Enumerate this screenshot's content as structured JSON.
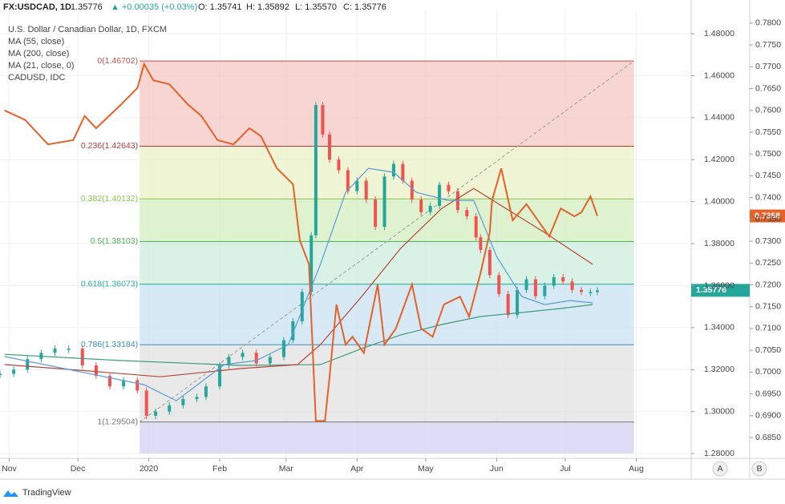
{
  "header": {
    "symbol": "FX:USDCAD, 1D",
    "last": "1.35776",
    "change": "▲ +0.00035 (+0.03%)",
    "open": "O: 1.35741",
    "high": "H: 1.35892",
    "low": "L: 1.35570",
    "close": "C: 1.35776"
  },
  "ui": {
    "auto": "A",
    "log": "B",
    "brand": "TradingView"
  },
  "chart_data": {
    "type": "line",
    "xlim": [
      0,
      302
    ],
    "xticks": [
      {
        "value": 4,
        "label": "Nov"
      },
      {
        "value": 34,
        "label": "Dec"
      },
      {
        "value": 65,
        "label": "2020"
      },
      {
        "value": 96,
        "label": "Feb"
      },
      {
        "value": 125,
        "label": "Mar"
      },
      {
        "value": 156,
        "label": "Apr"
      },
      {
        "value": 186,
        "label": "May"
      },
      {
        "value": 217,
        "label": "Jun"
      },
      {
        "value": 247,
        "label": "Jul"
      },
      {
        "value": 278,
        "label": "Aug"
      }
    ],
    "ylim": [
      1.2785,
      1.4915
    ],
    "yticks": [
      {
        "value": 1.28,
        "label": "1.28000"
      },
      {
        "value": 1.3,
        "label": "1.30000"
      },
      {
        "value": 1.32,
        "label": "1.32000"
      },
      {
        "value": 1.34,
        "label": "1.34000"
      },
      {
        "value": 1.36,
        "label": "1.36000"
      },
      {
        "value": 1.38,
        "label": "1.38000"
      },
      {
        "value": 1.4,
        "label": "1.40000"
      },
      {
        "value": 1.42,
        "label": "1.42000"
      },
      {
        "value": 1.44,
        "label": "1.44000"
      },
      {
        "value": 1.46,
        "label": "1.46000"
      },
      {
        "value": 1.48,
        "label": "1.48000"
      }
    ],
    "y2lim": [
      0.6806,
      0.7831
    ],
    "y2ticks": [
      {
        "value": 0.685,
        "label": "0.6850"
      },
      {
        "value": 0.69,
        "label": "0.6900"
      },
      {
        "value": 0.695,
        "label": "0.6950"
      },
      {
        "value": 0.7,
        "label": "0.7000"
      },
      {
        "value": 0.705,
        "label": "0.7050"
      },
      {
        "value": 0.71,
        "label": "0.7100"
      },
      {
        "value": 0.715,
        "label": "0.7150"
      },
      {
        "value": 0.72,
        "label": "0.7200"
      },
      {
        "value": 0.725,
        "label": "0.7250"
      },
      {
        "value": 0.73,
        "label": "0.7300"
      },
      {
        "value": 0.735,
        "label": "0.7350"
      },
      {
        "value": 0.74,
        "label": "0.7400"
      },
      {
        "value": 0.745,
        "label": "0.7450"
      },
      {
        "value": 0.75,
        "label": "0.7500"
      },
      {
        "value": 0.755,
        "label": "0.7550"
      },
      {
        "value": 0.76,
        "label": "0.7600"
      },
      {
        "value": 0.765,
        "label": "0.7650"
      },
      {
        "value": 0.77,
        "label": "0.7700"
      },
      {
        "value": 0.775,
        "label": "0.7750"
      },
      {
        "value": 0.78,
        "label": "0.7800"
      }
    ],
    "grid": true,
    "fib": {
      "start": 61,
      "end": 277,
      "levels": [
        {
          "value": 1.46702,
          "label": "0(1.46702)",
          "color": "#f4c7c3",
          "line": "#c0504d"
        },
        {
          "value": 1.42643,
          "label": "0.236(1.42643)",
          "color": "#e9f2c6",
          "line": "#b03a3a"
        },
        {
          "value": 1.40132,
          "label": "0.382(1.40132)",
          "color": "#d3edc0",
          "line": "#8bc34a"
        },
        {
          "value": 1.38103,
          "label": "0.5(1.38103)",
          "color": "#cdeedc",
          "line": "#4caf50"
        },
        {
          "value": 1.36073,
          "label": "0.618(1.36073)",
          "color": "#cae2f0",
          "line": "#26a69a"
        },
        {
          "value": 1.33184,
          "label": "0.786(1.33184)",
          "color": "#e2e2e2",
          "line": "#3a8fbf"
        },
        {
          "value": 1.29504,
          "label": "1(1.29504)",
          "color": "#d1d1f3",
          "line": "#777777"
        }
      ]
    },
    "series": [
      {
        "name": "U.S. Dollar / Canadian Dollar, 1D, FXCM",
        "style": "candle",
        "up_color": "#26a69a",
        "down_color": "#ef5350",
        "badge_color": "#26a69a",
        "x": [
          0,
          6,
          12,
          18,
          24,
          30,
          36,
          42,
          48,
          54,
          60,
          64,
          68,
          74,
          80,
          86,
          90,
          96,
          100,
          106,
          112,
          118,
          124,
          128,
          132,
          136,
          138,
          141,
          144,
          148,
          152,
          156,
          160,
          164,
          168,
          172,
          176,
          180,
          184,
          188,
          192,
          196,
          200,
          204,
          208,
          210,
          214,
          218,
          222,
          226,
          230,
          234,
          238,
          242,
          246,
          250,
          254,
          258,
          261
        ],
        "values": [
          1.318,
          1.32,
          1.325,
          1.328,
          1.33,
          1.33,
          1.322,
          1.317,
          1.312,
          1.315,
          1.31,
          1.298,
          1.3,
          1.303,
          1.306,
          1.307,
          1.312,
          1.322,
          1.326,
          1.328,
          1.323,
          1.326,
          1.334,
          1.343,
          1.357,
          1.384,
          1.446,
          1.432,
          1.42,
          1.415,
          1.405,
          1.41,
          1.401,
          1.388,
          1.412,
          1.418,
          1.41,
          1.401,
          1.395,
          1.398,
          1.408,
          1.405,
          1.396,
          1.393,
          1.383,
          1.377,
          1.365,
          1.356,
          1.346,
          1.358,
          1.363,
          1.355,
          1.36,
          1.364,
          1.362,
          1.358,
          1.357,
          1.357,
          1.35776
        ]
      },
      {
        "name": "MA (55, close)",
        "color": "#3d9a7c",
        "x": [
          2,
          53,
          105,
          140,
          158,
          175,
          193,
          210,
          228,
          245,
          259
        ],
        "values": [
          1.3273,
          1.3243,
          1.322,
          1.3224,
          1.33,
          1.3365,
          1.3415,
          1.3453,
          1.3472,
          1.3491,
          1.351
        ]
      },
      {
        "name": "MA (200, close)",
        "color": "#b5453a",
        "x": [
          2,
          35,
          70,
          105,
          130,
          140,
          158,
          175,
          193,
          207,
          221,
          238,
          259
        ],
        "values": [
          1.3224,
          1.3197,
          1.3166,
          1.3205,
          1.3224,
          1.3319,
          1.3548,
          1.3777,
          1.3968,
          1.4063,
          1.3968,
          1.3853,
          1.3701
        ]
      },
      {
        "name": "MA (21, close, 0)",
        "color": "#5b9cd6",
        "x": [
          2,
          63,
          77,
          98,
          112,
          126,
          140,
          151,
          161,
          172,
          182,
          196,
          207,
          217,
          228,
          238,
          249,
          259
        ],
        "values": [
          1.3262,
          1.3128,
          1.3052,
          1.3224,
          1.3243,
          1.3319,
          1.3701,
          1.4044,
          1.4159,
          1.414,
          1.4044,
          1.4006,
          1.4006,
          1.3739,
          1.3548,
          1.351,
          1.3529,
          1.3518
        ]
      },
      {
        "name": "CADUSD, IDC",
        "color": "#e2622a",
        "axis": "y2",
        "badge_color": "#e2622a",
        "x": [
          2,
          11,
          21,
          32,
          37,
          42,
          53,
          60,
          63,
          67,
          74,
          82,
          88,
          95,
          102,
          109,
          114,
          121,
          128,
          131,
          135,
          138,
          142,
          144,
          147,
          151,
          154,
          159,
          165,
          168,
          173,
          180,
          184,
          189,
          194,
          201,
          205,
          210,
          214,
          215,
          219,
          224,
          230,
          235,
          240,
          245,
          251,
          254,
          258,
          261
        ],
        "values": [
          0.76,
          0.7578,
          0.7522,
          0.7532,
          0.7587,
          0.7559,
          0.7614,
          0.7651,
          0.7706,
          0.7669,
          0.766,
          0.7614,
          0.7587,
          0.7532,
          0.7522,
          0.7559,
          0.7541,
          0.7467,
          0.7431,
          0.7302,
          0.7247,
          0.6888,
          0.6888,
          0.6989,
          0.7155,
          0.7063,
          0.7081,
          0.7044,
          0.7201,
          0.7063,
          0.71,
          0.7201,
          0.71,
          0.7081,
          0.7155,
          0.7173,
          0.7127,
          0.7228,
          0.732,
          0.7394,
          0.7467,
          0.7348,
          0.7385,
          0.7348,
          0.7311,
          0.7375,
          0.7357,
          0.7366,
          0.7403,
          0.7358
        ]
      }
    ]
  }
}
